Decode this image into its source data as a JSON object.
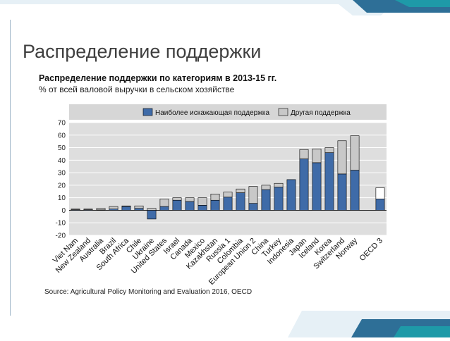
{
  "slide": {
    "title": "Распределение поддержки",
    "chart_title": "Распределение поддержки по категориям в 2013-15 гг.",
    "chart_subtitle": "% от всей валовой выручки в сельском хозяйстве",
    "source": "Source: Agricultural Policy Monitoring and Evaluation 2016, OECD"
  },
  "colors": {
    "accent": "#2e6f97",
    "teal": "#1e9aa8",
    "most_distorting": "#3f6ba8",
    "other": "#c8c8c8",
    "legend_band": "#d6d6d6"
  },
  "chart_data": {
    "type": "bar",
    "stacked": true,
    "title": "Распределение поддержки по категориям в 2013-15 гг.",
    "ylabel": "% от всей валовой выручки в сельском хозяйстве",
    "ylim": [
      -20,
      70
    ],
    "yticks": [
      -20,
      -10,
      0,
      10,
      20,
      30,
      40,
      50,
      60,
      70
    ],
    "categories": [
      "Viet Nam",
      "New Zealand",
      "Australia",
      "Brazil",
      "South Africa",
      "Chile",
      "Ukraine",
      "United States",
      "Israel",
      "Canada",
      "Mexico",
      "Kazakhstan",
      "Russia 1",
      "Colombia",
      "European Union 2",
      "China",
      "Turkey",
      "Indonesia",
      "Japan",
      "Iceland",
      "Korea",
      "Switzerland",
      "Norway",
      "",
      "OECD 3"
    ],
    "series": [
      {
        "name": "Наиболее искажающая поддержка",
        "values": [
          0.5,
          0.5,
          0.3,
          1.0,
          3.0,
          1.5,
          -7.0,
          3.0,
          8.0,
          7.0,
          4.0,
          8.0,
          10.5,
          14.0,
          5.5,
          16.5,
          18.5,
          24.5,
          41.0,
          38.0,
          46.0,
          29.0,
          32.0,
          null,
          9.0
        ]
      },
      {
        "name": "Другая поддержка",
        "values": [
          0.5,
          0.5,
          1.2,
          2.0,
          0.5,
          2.0,
          1.5,
          6.0,
          2.0,
          3.0,
          6.0,
          5.0,
          4.0,
          3.0,
          13.5,
          3.5,
          3.0,
          0.0,
          7.5,
          11.0,
          4.0,
          26.5,
          27.5,
          null,
          9.0
        ]
      }
    ],
    "legend": [
      "Наиболее искажающая поддержка",
      "Другая поддержка"
    ],
    "legend_position": "top"
  }
}
